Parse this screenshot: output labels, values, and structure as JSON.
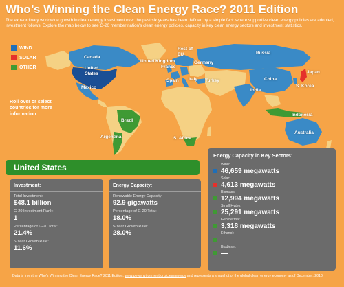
{
  "title": "Who’s Winning the Clean Energy Race? 2011 Edition",
  "intro": "The extraordinary worldwide growth in clean energy investment over the past six years has been defined by a simple fact: where supportive clean energy policies are adopted, investment follows. Explore the map below to see G-20 member nation’s clean energy policies, capacity in key clean energy sectors and investment statistics.",
  "legend": [
    {
      "label": "WIND",
      "color": "#1f6fb8"
    },
    {
      "label": "SOLAR",
      "color": "#e5302b"
    },
    {
      "label": "OTHER",
      "color": "#3f9a34"
    }
  ],
  "rollover": "Roll over or select countries for more information",
  "colors": {
    "background": "#f6a447",
    "land": "#f5d184",
    "wind": "#3a8ac6",
    "selected": "#1a4f95",
    "solar": "#e5302b",
    "other": "#3f9a34",
    "panel": "#6b6b6b",
    "country_bar": "#2e8f2a"
  },
  "map_labels": {
    "canada": "Canada",
    "united_states": "United States",
    "mexico": "Mexico",
    "brazil": "Brazil",
    "argentina": "Argentina",
    "united_kingdom": "United Kingdom",
    "rest_of_eu": "Rest of EU",
    "germany": "Germany",
    "france": "France",
    "spain": "Spain",
    "italy": "Italy",
    "turkey": "Turkey",
    "russia": "Russia",
    "india": "India",
    "china": "China",
    "japan": "Japan",
    "south_korea": "S. Korea",
    "indonesia": "Indonesia",
    "australia": "Australia",
    "south_africa": "S. Africa"
  },
  "selected_country": "United States",
  "investment": {
    "header": "Investment:",
    "total_label": "Total Investment:",
    "total_value": "$48.1 billion",
    "rank_label": "G-20 Investment Rank:",
    "rank_value": "1",
    "pct_label": "Percentage of G-20 Total:",
    "pct_value": "21.4%",
    "growth_label": "5-Year Growth Rate:",
    "growth_value": "11.6%"
  },
  "capacity": {
    "header": "Energy Capacity:",
    "renewable_label": "Renewable Energy Capacity:",
    "renewable_value": "92.9 gigawatts",
    "pct_label": "Percentage of G-20 Total:",
    "pct_value": "18.0%",
    "growth_label": "5-Year Growth Rate:",
    "growth_value": "28.0%"
  },
  "sectors": {
    "header": "Energy Capacity in Key Sectors:",
    "items": [
      {
        "label": "Wind:",
        "value": "46,659 megawatts",
        "color": "#1f6fb8"
      },
      {
        "label": "Solar:",
        "value": "4,613 megawatts",
        "color": "#e5302b"
      },
      {
        "label": "Biomass:",
        "value": "12,994 megawatts",
        "color": "#3f9a34"
      },
      {
        "label": "Small Hydro:",
        "value": "25,291 megawatts",
        "color": "#3f9a34"
      },
      {
        "label": "Geothermal:",
        "value": "3,318 megawatts",
        "color": "#3f9a34"
      },
      {
        "label": "Ethanol:",
        "value": "—",
        "color": "#3f9a34"
      },
      {
        "label": "Biodiesel:",
        "value": "—",
        "color": "#3f9a34"
      }
    ]
  },
  "footer": {
    "prefix": "Data is from the Who’s Winning the Clean Energy Race? 2011 Edition,",
    "link": "www.pewenvironment.org/cleanenergy",
    "suffix": "and represents a snapshot of the global clean energy economy as of December, 2010."
  }
}
